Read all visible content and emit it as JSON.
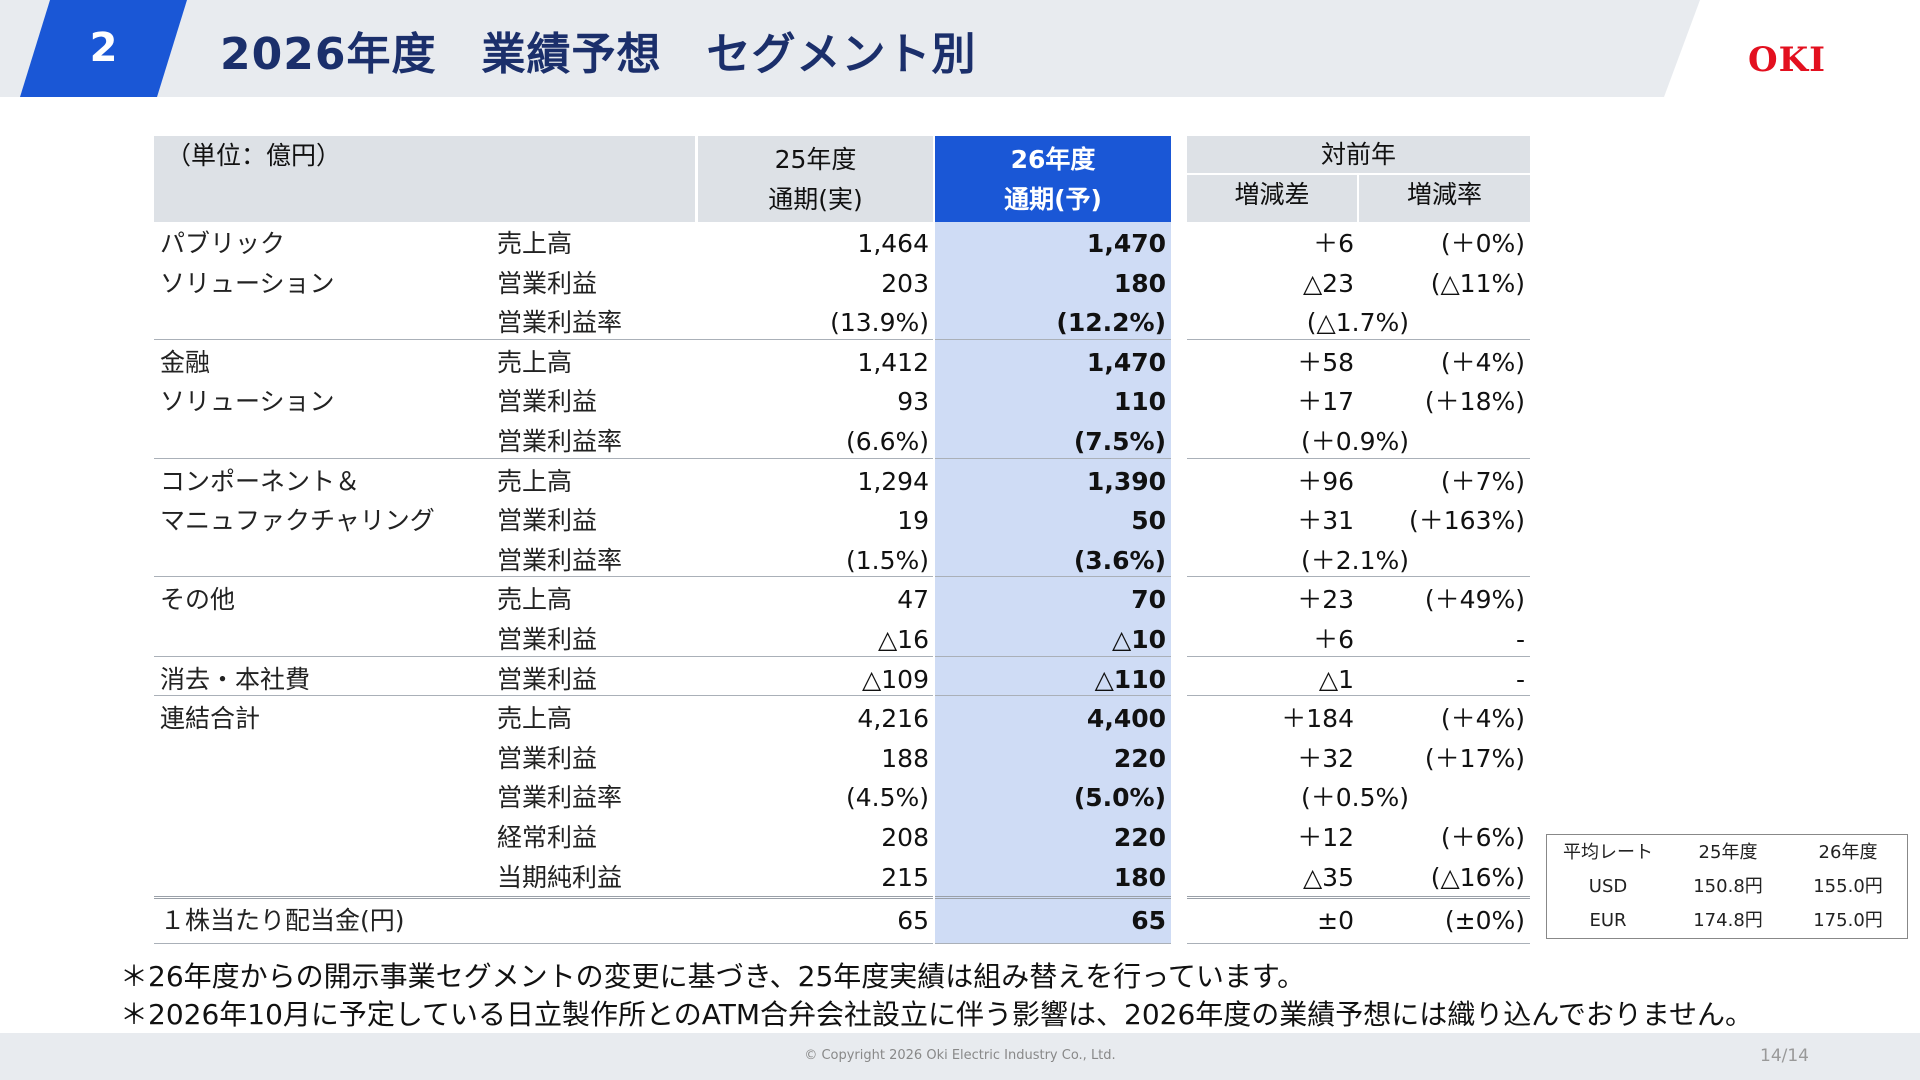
{
  "header": {
    "page_number": "2",
    "title": "2026年度　業績予想　セグメント別",
    "logo": "OKI",
    "brand_blue": "#1a57d6",
    "logo_red": "#e3101f"
  },
  "table": {
    "unit": "（単位：億円）",
    "col_25_line1": "25年度",
    "col_25_line2": "通期(実)",
    "col_26_line1": "26年度",
    "col_26_line2": "通期(予)",
    "yoy_header": "対前年",
    "diff_header": "増減差",
    "rate_header": "増減率",
    "rows": [
      {
        "seg": "パブリック",
        "item": "売上高",
        "v25": "1,464",
        "v26": "1,470",
        "diff": "＋6",
        "rate": "(＋0%)"
      },
      {
        "seg": "ソリューション",
        "item": "営業利益",
        "v25": "203",
        "v26": "180",
        "diff": "△23",
        "rate": "(△11%)"
      },
      {
        "seg": "",
        "item": "営業利益率",
        "v25": "(13.9%)",
        "v26": "(12.2%)",
        "diff": "(△1.7%)",
        "rate": ""
      },
      {
        "seg": "金融",
        "item": "売上高",
        "v25": "1,412",
        "v26": "1,470",
        "diff": "＋58",
        "rate": "(＋4%)"
      },
      {
        "seg": "ソリューション",
        "item": "営業利益",
        "v25": "93",
        "v26": "110",
        "diff": "＋17",
        "rate": "(＋18%)"
      },
      {
        "seg": "",
        "item": "営業利益率",
        "v25": "(6.6%)",
        "v26": "(7.5%)",
        "diff": "(＋0.9%)",
        "rate": ""
      },
      {
        "seg": "コンポーネント＆",
        "item": "売上高",
        "v25": "1,294",
        "v26": "1,390",
        "diff": "＋96",
        "rate": "(＋7%)"
      },
      {
        "seg": "マニュファクチャリング",
        "item": "営業利益",
        "v25": "19",
        "v26": "50",
        "diff": "＋31",
        "rate": "(＋163%)"
      },
      {
        "seg": "",
        "item": "営業利益率",
        "v25": "(1.5%)",
        "v26": "(3.6%)",
        "diff": "(＋2.1%)",
        "rate": ""
      },
      {
        "seg": "その他",
        "item": "売上高",
        "v25": "47",
        "v26": "70",
        "diff": "＋23",
        "rate": "(＋49%)"
      },
      {
        "seg": "",
        "item": "営業利益",
        "v25": "△16",
        "v26": "△10",
        "diff": "＋6",
        "rate": "-"
      },
      {
        "seg": "消去・本社費",
        "item": "営業利益",
        "v25": "△109",
        "v26": "△110",
        "diff": "△1",
        "rate": "-"
      },
      {
        "seg": "連結合計",
        "item": "売上高",
        "v25": "4,216",
        "v26": "4,400",
        "diff": "＋184",
        "rate": "(＋4%)"
      },
      {
        "seg": "",
        "item": "営業利益",
        "v25": "188",
        "v26": "220",
        "diff": "＋32",
        "rate": "(＋17%)"
      },
      {
        "seg": "",
        "item": "営業利益率",
        "v25": "(4.5%)",
        "v26": "(5.0%)",
        "diff": "(＋0.5%)",
        "rate": ""
      },
      {
        "seg": "",
        "item": "経常利益",
        "v25": "208",
        "v26": "220",
        "diff": "＋12",
        "rate": "(＋6%)"
      },
      {
        "seg": "",
        "item": "当期純利益",
        "v25": "215",
        "v26": "180",
        "diff": "△35",
        "rate": "(△16%)"
      }
    ],
    "dividend": {
      "label": "１株当たり配当金(円)",
      "v25": "65",
      "v26": "65",
      "diff": "±0",
      "rate": "(±0%)"
    }
  },
  "rates": {
    "header": [
      "平均レート",
      "25年度",
      "26年度"
    ],
    "rows": [
      [
        "USD",
        "150.8円",
        "155.0円"
      ],
      [
        "EUR",
        "174.8円",
        "175.0円"
      ]
    ]
  },
  "notes": [
    "＊26年度からの開示事業セグメントの変更に基づき、25年度実績は組み替えを行っています。",
    "＊2026年10月に予定している日立製作所とのATM合弁会社設立に伴う影響は、2026年度の業績予想には織り込んでおりません。"
  ],
  "footer": {
    "copyright": "© Copyright 2026 Oki Electric Industry Co., Ltd.",
    "page": "14/14"
  }
}
